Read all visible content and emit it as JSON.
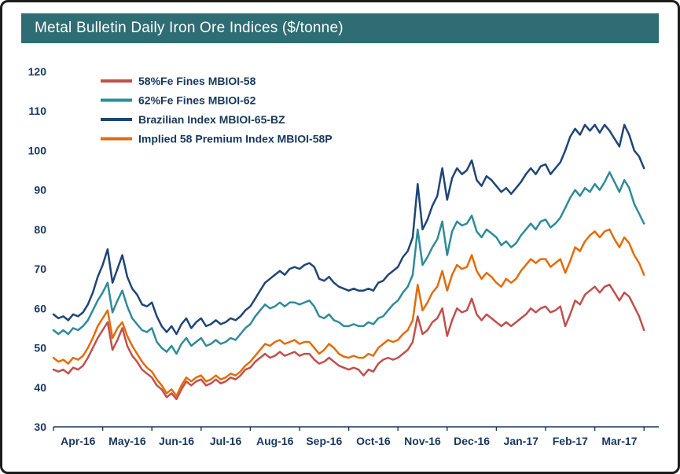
{
  "header": {
    "title": "Metal Bulletin Daily Iron Ore Indices ($/tonne)",
    "bar_color": "#2E6D73",
    "text_color": "#FFFFFF"
  },
  "chart_data": {
    "type": "line",
    "title": "Metal Bulletin Daily Iron Ore Indices ($/tonne)",
    "xlabel": "",
    "ylabel": "",
    "grid": false,
    "legend_position": "top-left-inside",
    "axis_color": "#17375E",
    "x_axis": {
      "unit": "months-since-Apr-2016",
      "start": 0,
      "step": 0.1,
      "span": 12.3,
      "tick_labels": [
        "Apr-16",
        "May-16",
        "Jun-16",
        "Jul-16",
        "Aug-16",
        "Sep-16",
        "Oct-16",
        "Nov-16",
        "Dec-16",
        "Jan-17",
        "Feb-17",
        "Mar-17"
      ]
    },
    "y_axis": {
      "min": 30,
      "max": 120,
      "tick_step": 10
    },
    "series": [
      {
        "name": "58%Fe Fines MBIOI-58",
        "color": "#C0504D",
        "values": [
          44.5,
          44,
          44.5,
          43.5,
          45,
          44.5,
          45.5,
          47.5,
          50,
          52.5,
          54.5,
          56.5,
          49.5,
          52,
          55,
          50.5,
          48,
          46.5,
          44.5,
          43.5,
          42.5,
          40.5,
          39.5,
          37.5,
          38.5,
          37,
          39.5,
          41.5,
          40.5,
          41.5,
          42,
          40.5,
          41,
          42,
          41,
          41.5,
          42.5,
          42,
          43,
          44.5,
          45,
          46.5,
          47.5,
          48.5,
          47.5,
          48,
          49,
          48,
          48.5,
          49,
          48,
          48.5,
          48.5,
          47,
          46,
          46.5,
          47.5,
          46.5,
          45.5,
          45,
          44.5,
          45,
          44.5,
          43,
          44.5,
          44,
          46,
          47,
          47.5,
          47,
          47.5,
          48.5,
          49.5,
          51.5,
          58,
          53.5,
          54.5,
          56.5,
          57.5,
          60,
          53,
          57,
          60,
          59,
          59.5,
          62.5,
          58.5,
          57,
          58.5,
          57.5,
          56.5,
          55.5,
          56.5,
          55.5,
          56.5,
          57.5,
          58.5,
          60,
          59,
          60,
          60.5,
          59,
          59.5,
          60.5,
          55.5,
          58.5,
          62,
          61,
          63.5,
          64.5,
          65.5,
          64,
          65.5,
          66,
          64,
          62,
          64,
          63,
          60.5,
          58,
          54.5
        ]
      },
      {
        "name": "62%Fe Fines MBIOI-62",
        "color": "#2E8B9A",
        "values": [
          54.5,
          53.5,
          54.5,
          53.5,
          55,
          54.5,
          55.5,
          57,
          59.5,
          62,
          64,
          66.5,
          59,
          62,
          64.5,
          60.5,
          57.5,
          56,
          54.5,
          54,
          55,
          51.5,
          50,
          49,
          50.5,
          48.5,
          51,
          52.5,
          50.5,
          51.5,
          52.5,
          50.5,
          51,
          52,
          51,
          51.5,
          52.5,
          52,
          53.5,
          55,
          56,
          58,
          59.5,
          61,
          60,
          60.5,
          61.5,
          60.5,
          61.5,
          61.5,
          61,
          61.5,
          62,
          60.5,
          58,
          57.5,
          58.5,
          57,
          56.5,
          55.5,
          55.5,
          56,
          55.5,
          55.5,
          56.5,
          56,
          57.5,
          58,
          59.5,
          61,
          62,
          64,
          65.5,
          68.5,
          80,
          71,
          73,
          75.5,
          77.5,
          82,
          73.5,
          79.5,
          82,
          81,
          81.5,
          83.5,
          79.5,
          78,
          80,
          79,
          78,
          76,
          77,
          75.5,
          76.5,
          78.5,
          80,
          81.5,
          80,
          82,
          82.5,
          80.5,
          81.5,
          83,
          85.5,
          88,
          90,
          88.5,
          90.5,
          89.5,
          91.5,
          90,
          92,
          94.5,
          92,
          89.5,
          92.5,
          90.5,
          86.5,
          84,
          81.5
        ]
      },
      {
        "name": "Brazilian Index MBIOI-65-BZ",
        "color": "#1F4577",
        "values": [
          58.5,
          57.5,
          58,
          57,
          58.5,
          58,
          59,
          61,
          64,
          68,
          71,
          75,
          66.5,
          70,
          73.5,
          68,
          65,
          63.5,
          61,
          60.5,
          61.5,
          58,
          55.5,
          54,
          55.5,
          53.5,
          56,
          57.5,
          55,
          56.5,
          57.5,
          55.5,
          56,
          57,
          56,
          56.5,
          57.5,
          57,
          58,
          59.5,
          60.5,
          62.5,
          64.5,
          66.5,
          67.5,
          68.5,
          69.5,
          68.5,
          70,
          70.5,
          70,
          71,
          71.5,
          70.5,
          67.5,
          67,
          68,
          66.5,
          65.5,
          65,
          64.5,
          65,
          64.5,
          64.5,
          65,
          64.5,
          66.5,
          67,
          68.5,
          69.5,
          70.5,
          73,
          74.5,
          78,
          91.5,
          80,
          82.5,
          86,
          88.5,
          95.5,
          87.5,
          93,
          95.5,
          94,
          95,
          97.5,
          92.5,
          91,
          93.5,
          92.5,
          91,
          89.5,
          90.5,
          89,
          90.5,
          92,
          94,
          95.5,
          94,
          96,
          96.5,
          94,
          95.5,
          97,
          100,
          103.5,
          105.5,
          104,
          106.5,
          105,
          106.5,
          104.5,
          106.5,
          105,
          103,
          101,
          106.5,
          104,
          100,
          98.5,
          95.5
        ]
      },
      {
        "name": "Implied 58 Premium Index MBIOI-58P",
        "color": "#E36C09",
        "values": [
          47.5,
          46.5,
          47,
          46,
          47.5,
          47,
          48,
          50,
          52.5,
          55.5,
          57.5,
          59.5,
          52.5,
          55,
          56.5,
          53,
          50.5,
          48.5,
          46.5,
          45,
          44,
          42,
          40.5,
          38.5,
          39.5,
          37.8,
          40.5,
          42.5,
          41.5,
          42.5,
          43,
          41.5,
          42,
          43,
          42,
          42.5,
          43.5,
          43,
          44,
          45.5,
          46.5,
          48,
          49.5,
          51,
          50.5,
          51.5,
          52,
          51,
          51.5,
          52,
          51,
          51.5,
          51.5,
          50,
          48.5,
          49.5,
          51,
          50,
          48.5,
          47.8,
          47.5,
          48,
          47.5,
          47.5,
          48.5,
          48,
          50,
          51,
          52,
          51.5,
          52,
          53.5,
          54.5,
          57,
          66,
          59.5,
          61.5,
          64,
          65.5,
          69.5,
          64.5,
          68.5,
          71,
          70,
          70.5,
          73.5,
          69.5,
          67.5,
          69,
          68,
          66.5,
          65.5,
          67.5,
          66.5,
          67.5,
          69.5,
          71,
          72.5,
          71.5,
          72.5,
          72.5,
          70.5,
          71.5,
          72.5,
          69,
          72,
          75.5,
          74.5,
          77,
          78.5,
          79.5,
          78,
          79.5,
          80,
          77.5,
          75.5,
          78,
          76.5,
          73.5,
          71.5,
          68.5
        ]
      }
    ]
  }
}
